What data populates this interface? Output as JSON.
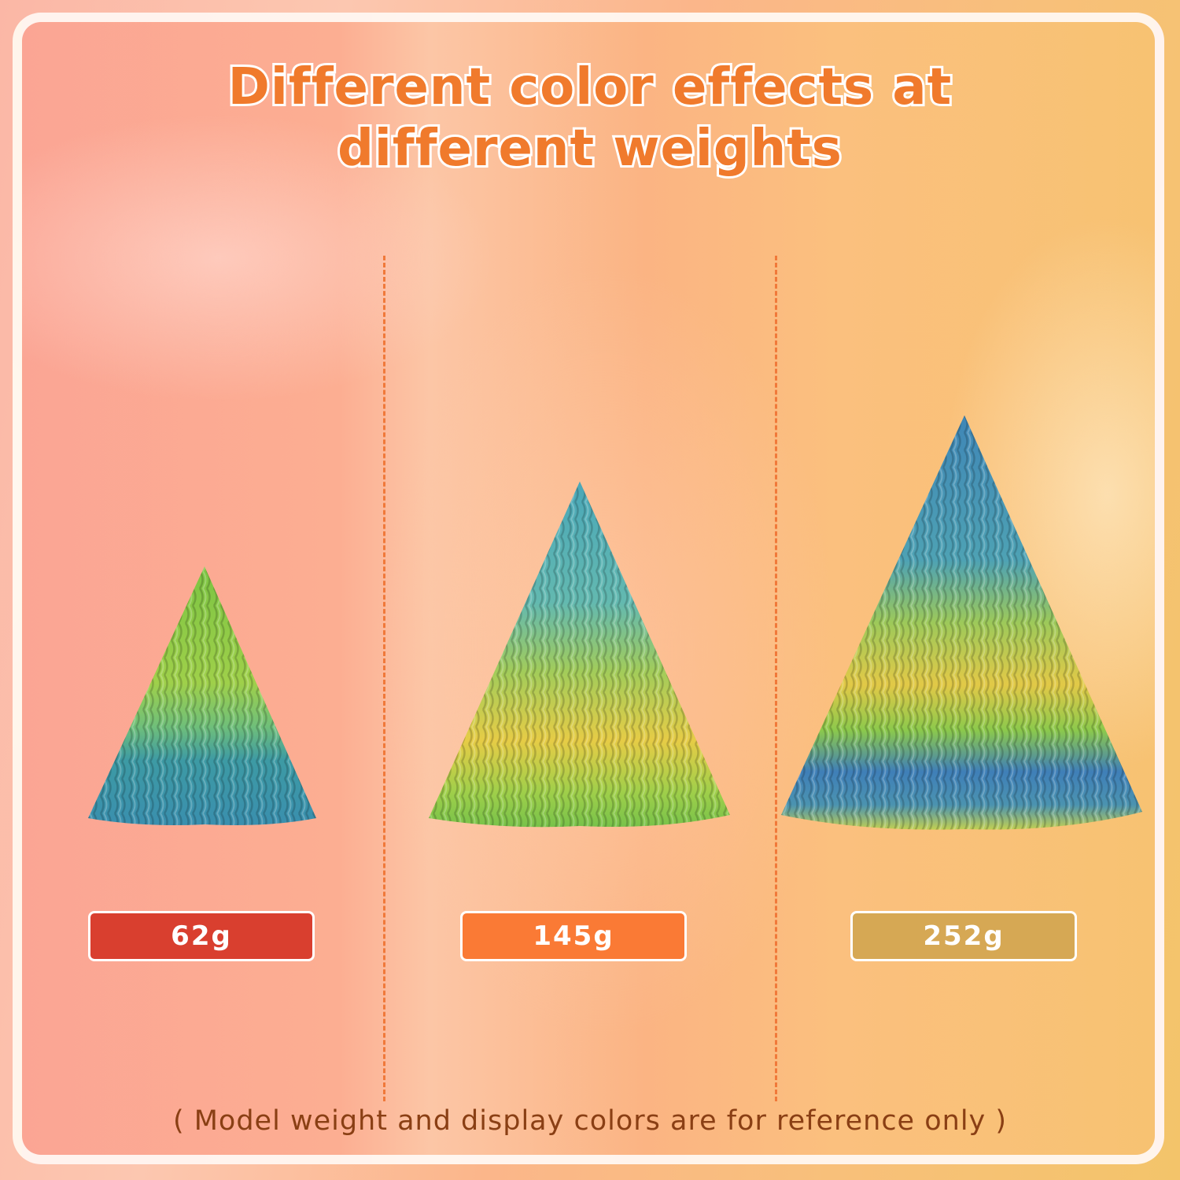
{
  "title": {
    "line1": "Different color effects at",
    "line2": "different weights"
  },
  "items": [
    {
      "weight": "62g",
      "badge_color": "#d93f2f"
    },
    {
      "weight": "145g",
      "badge_color": "#fa7a35"
    },
    {
      "weight": "252g",
      "badge_color": "#d6a854"
    }
  ],
  "note": "( Model weight and display colors are for reference only )",
  "colors": {
    "title": "#f07a2c",
    "divider": "#f0793a",
    "note": "#8a3f14"
  }
}
